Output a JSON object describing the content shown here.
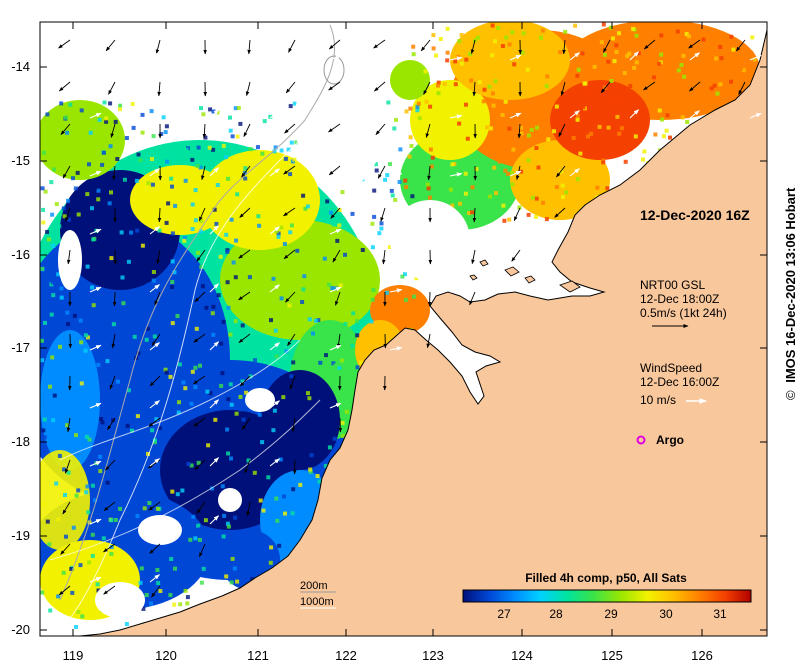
{
  "map": {
    "lat_ticks": [
      "-14",
      "-15",
      "-16",
      "-17",
      "-18",
      "-19",
      "-20"
    ],
    "lon_ticks": [
      "119",
      "120",
      "121",
      "122",
      "123",
      "124",
      "125",
      "126"
    ],
    "timestamp": "12-Dec-2020 16Z",
    "current_legend": {
      "source": "NRT00 GSL",
      "time": "12-Dec 18:00Z",
      "scale": "0.5m/s (1kt 24h)"
    },
    "wind_legend": {
      "title": "WindSpeed",
      "time": "12-Dec 16:00Z",
      "scale": "10 m/s"
    },
    "argo_label": "Argo",
    "bathymetry": {
      "contour1": "200m",
      "contour2": "1000m"
    },
    "colorbar": {
      "title": "Filled 4h comp, p50, All Sats",
      "labels": [
        "27",
        "28",
        "29",
        "30",
        "31"
      ],
      "colors": [
        "#00107a",
        "#0047d6",
        "#008cff",
        "#00d2ff",
        "#00e3a0",
        "#39e34a",
        "#9be600",
        "#f2f200",
        "#ffc000",
        "#ff8000",
        "#f44000",
        "#b00000"
      ]
    },
    "colors": {
      "land": "#f9c79c",
      "arrow_current": "#000000",
      "arrow_wind": "#ffffff",
      "argo": "#e000e0"
    },
    "credit": "IMOS 16-Dec-2020 13:06 Hobart",
    "credit_symbol": "©"
  }
}
